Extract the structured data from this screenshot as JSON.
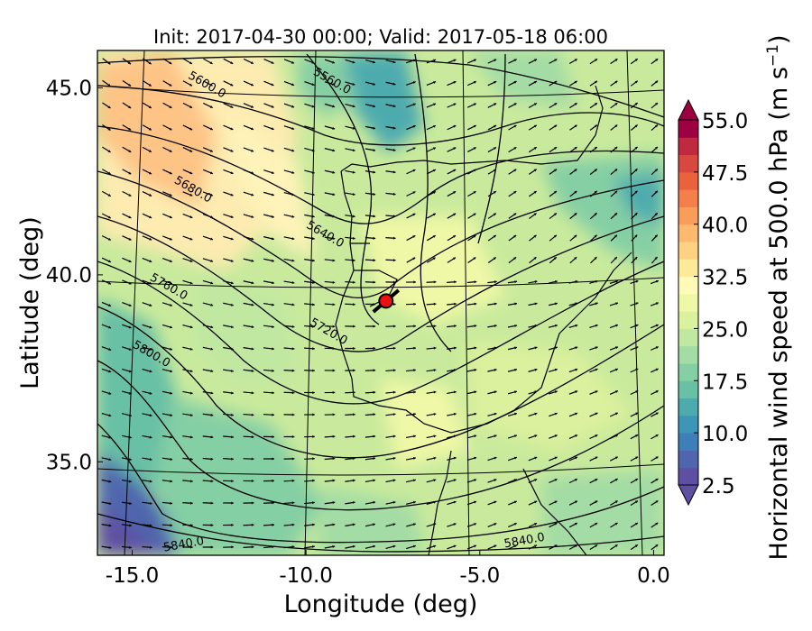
{
  "chart_data": {
    "type": "heatmap",
    "title": "Init: 2017-04-30 00:00; Valid: 2017-05-18 06:00",
    "xlabel": "Longitude (deg)",
    "ylabel": "Latitude (deg)",
    "xlim": [
      -16,
      0.3
    ],
    "ylim": [
      32.5,
      46.0
    ],
    "xticks": [
      {
        "value": -15.0,
        "label": "-15.0"
      },
      {
        "value": -10.0,
        "label": "-10.0"
      },
      {
        "value": -5.0,
        "label": "-5.0"
      },
      {
        "value": 0.0,
        "label": "0.0"
      }
    ],
    "yticks": [
      {
        "value": 35.0,
        "label": "35.0"
      },
      {
        "value": 40.0,
        "label": "40.0"
      },
      {
        "value": 45.0,
        "label": "45.0"
      }
    ],
    "colorbar": {
      "label": "Horizontal wind speed at 500.0 hPa (m s",
      "label_exponent": "−1",
      "label_close": ")",
      "range": [
        2.5,
        55.0
      ],
      "extend": "both",
      "levels": [
        2.5,
        5.0,
        7.5,
        10.0,
        12.5,
        15.0,
        17.5,
        20.0,
        22.5,
        25.0,
        27.5,
        30.0,
        32.5,
        35.0,
        37.5,
        40.0,
        42.5,
        45.0,
        47.5,
        50.0,
        52.5,
        55.0
      ],
      "tick_labels": [
        "2.5",
        "10.0",
        "17.5",
        "25.0",
        "32.5",
        "40.0",
        "47.5",
        "55.0"
      ],
      "colors": [
        "#5e4fa2",
        "#4f66ae",
        "#3f7fb9",
        "#3d95b8",
        "#4dabae",
        "#68c0a5",
        "#85cfa4",
        "#a3dca4",
        "#c1e8a0",
        "#dbf19d",
        "#eff8a6",
        "#fdfbb7",
        "#fee999",
        "#fed283",
        "#fdb96d",
        "#fa9c5a",
        "#f57f4b",
        "#e8623e",
        "#d7483e",
        "#c0293f",
        "#9e0142"
      ]
    },
    "contour_labels": [
      {
        "text": "5600.0",
        "lon": -12.9,
        "lat": 45.0
      },
      {
        "text": "5560.0",
        "lon": -9.3,
        "lat": 45.1
      },
      {
        "text": "5680.0",
        "lon": -13.3,
        "lat": 42.2
      },
      {
        "text": "5640.0",
        "lon": -9.5,
        "lat": 41.0
      },
      {
        "text": "5760.0",
        "lon": -14.0,
        "lat": 39.6
      },
      {
        "text": "5720.0",
        "lon": -9.4,
        "lat": 38.4
      },
      {
        "text": "5800.0",
        "lon": -14.5,
        "lat": 37.8
      },
      {
        "text": "5840.0",
        "lon": -13.5,
        "lat": 32.7
      },
      {
        "text": "5840.0",
        "lon": -3.7,
        "lat": 32.8
      }
    ],
    "marker": {
      "lon": -7.7,
      "lat": 39.3,
      "color": "#ee1111"
    }
  }
}
